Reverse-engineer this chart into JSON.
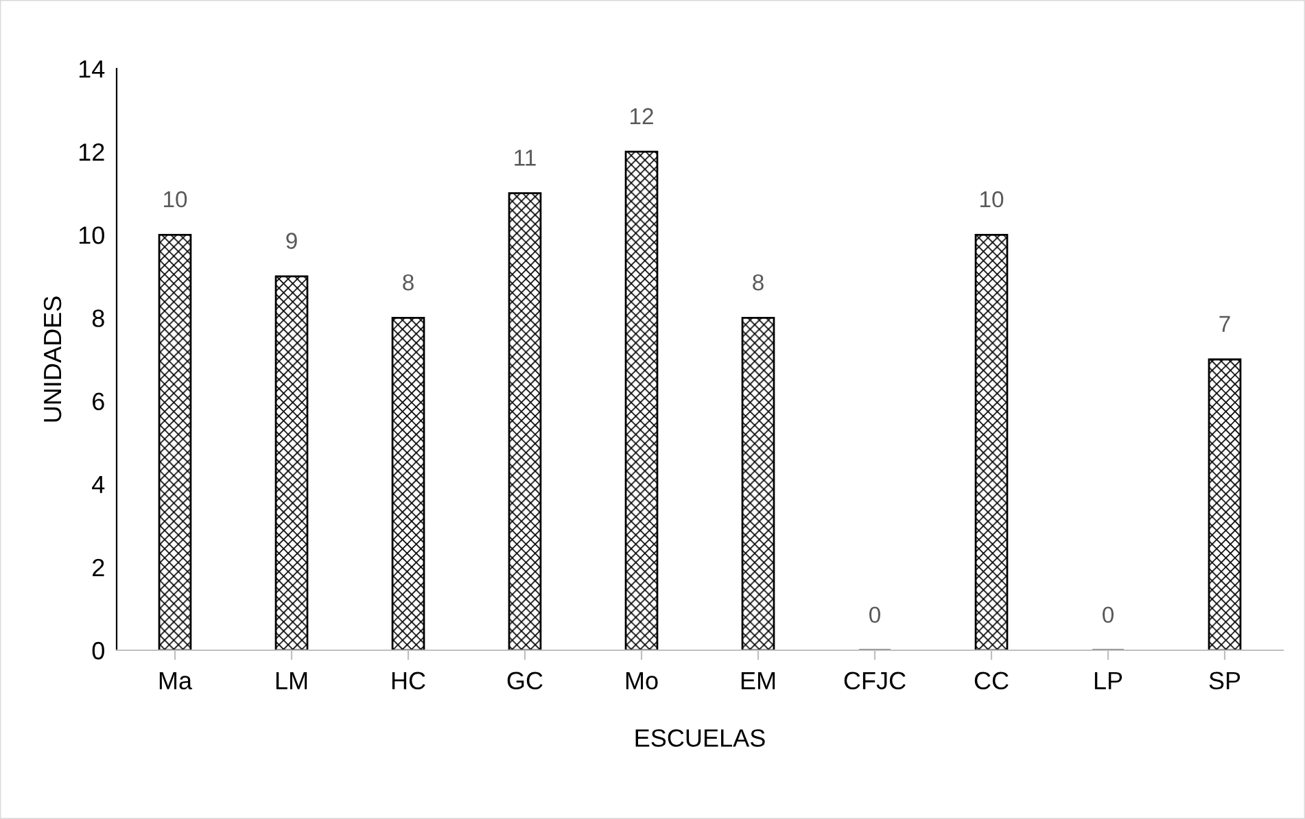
{
  "chart_data": {
    "type": "bar",
    "xlabel": "ESCUELAS",
    "ylabel": "UNIDADES",
    "categories": [
      "Ma",
      "LM",
      "HC",
      "GC",
      "Mo",
      "EM",
      "CFJC",
      "CC",
      "LP",
      "SP"
    ],
    "values": [
      10,
      9,
      8,
      11,
      12,
      8,
      0,
      10,
      0,
      7
    ],
    "color": "#000000",
    "ylim": [
      0,
      14
    ],
    "yticks": [
      0,
      2,
      4,
      6,
      8,
      10,
      12,
      14
    ],
    "data_labels": true,
    "grid": false,
    "legend": false
  }
}
